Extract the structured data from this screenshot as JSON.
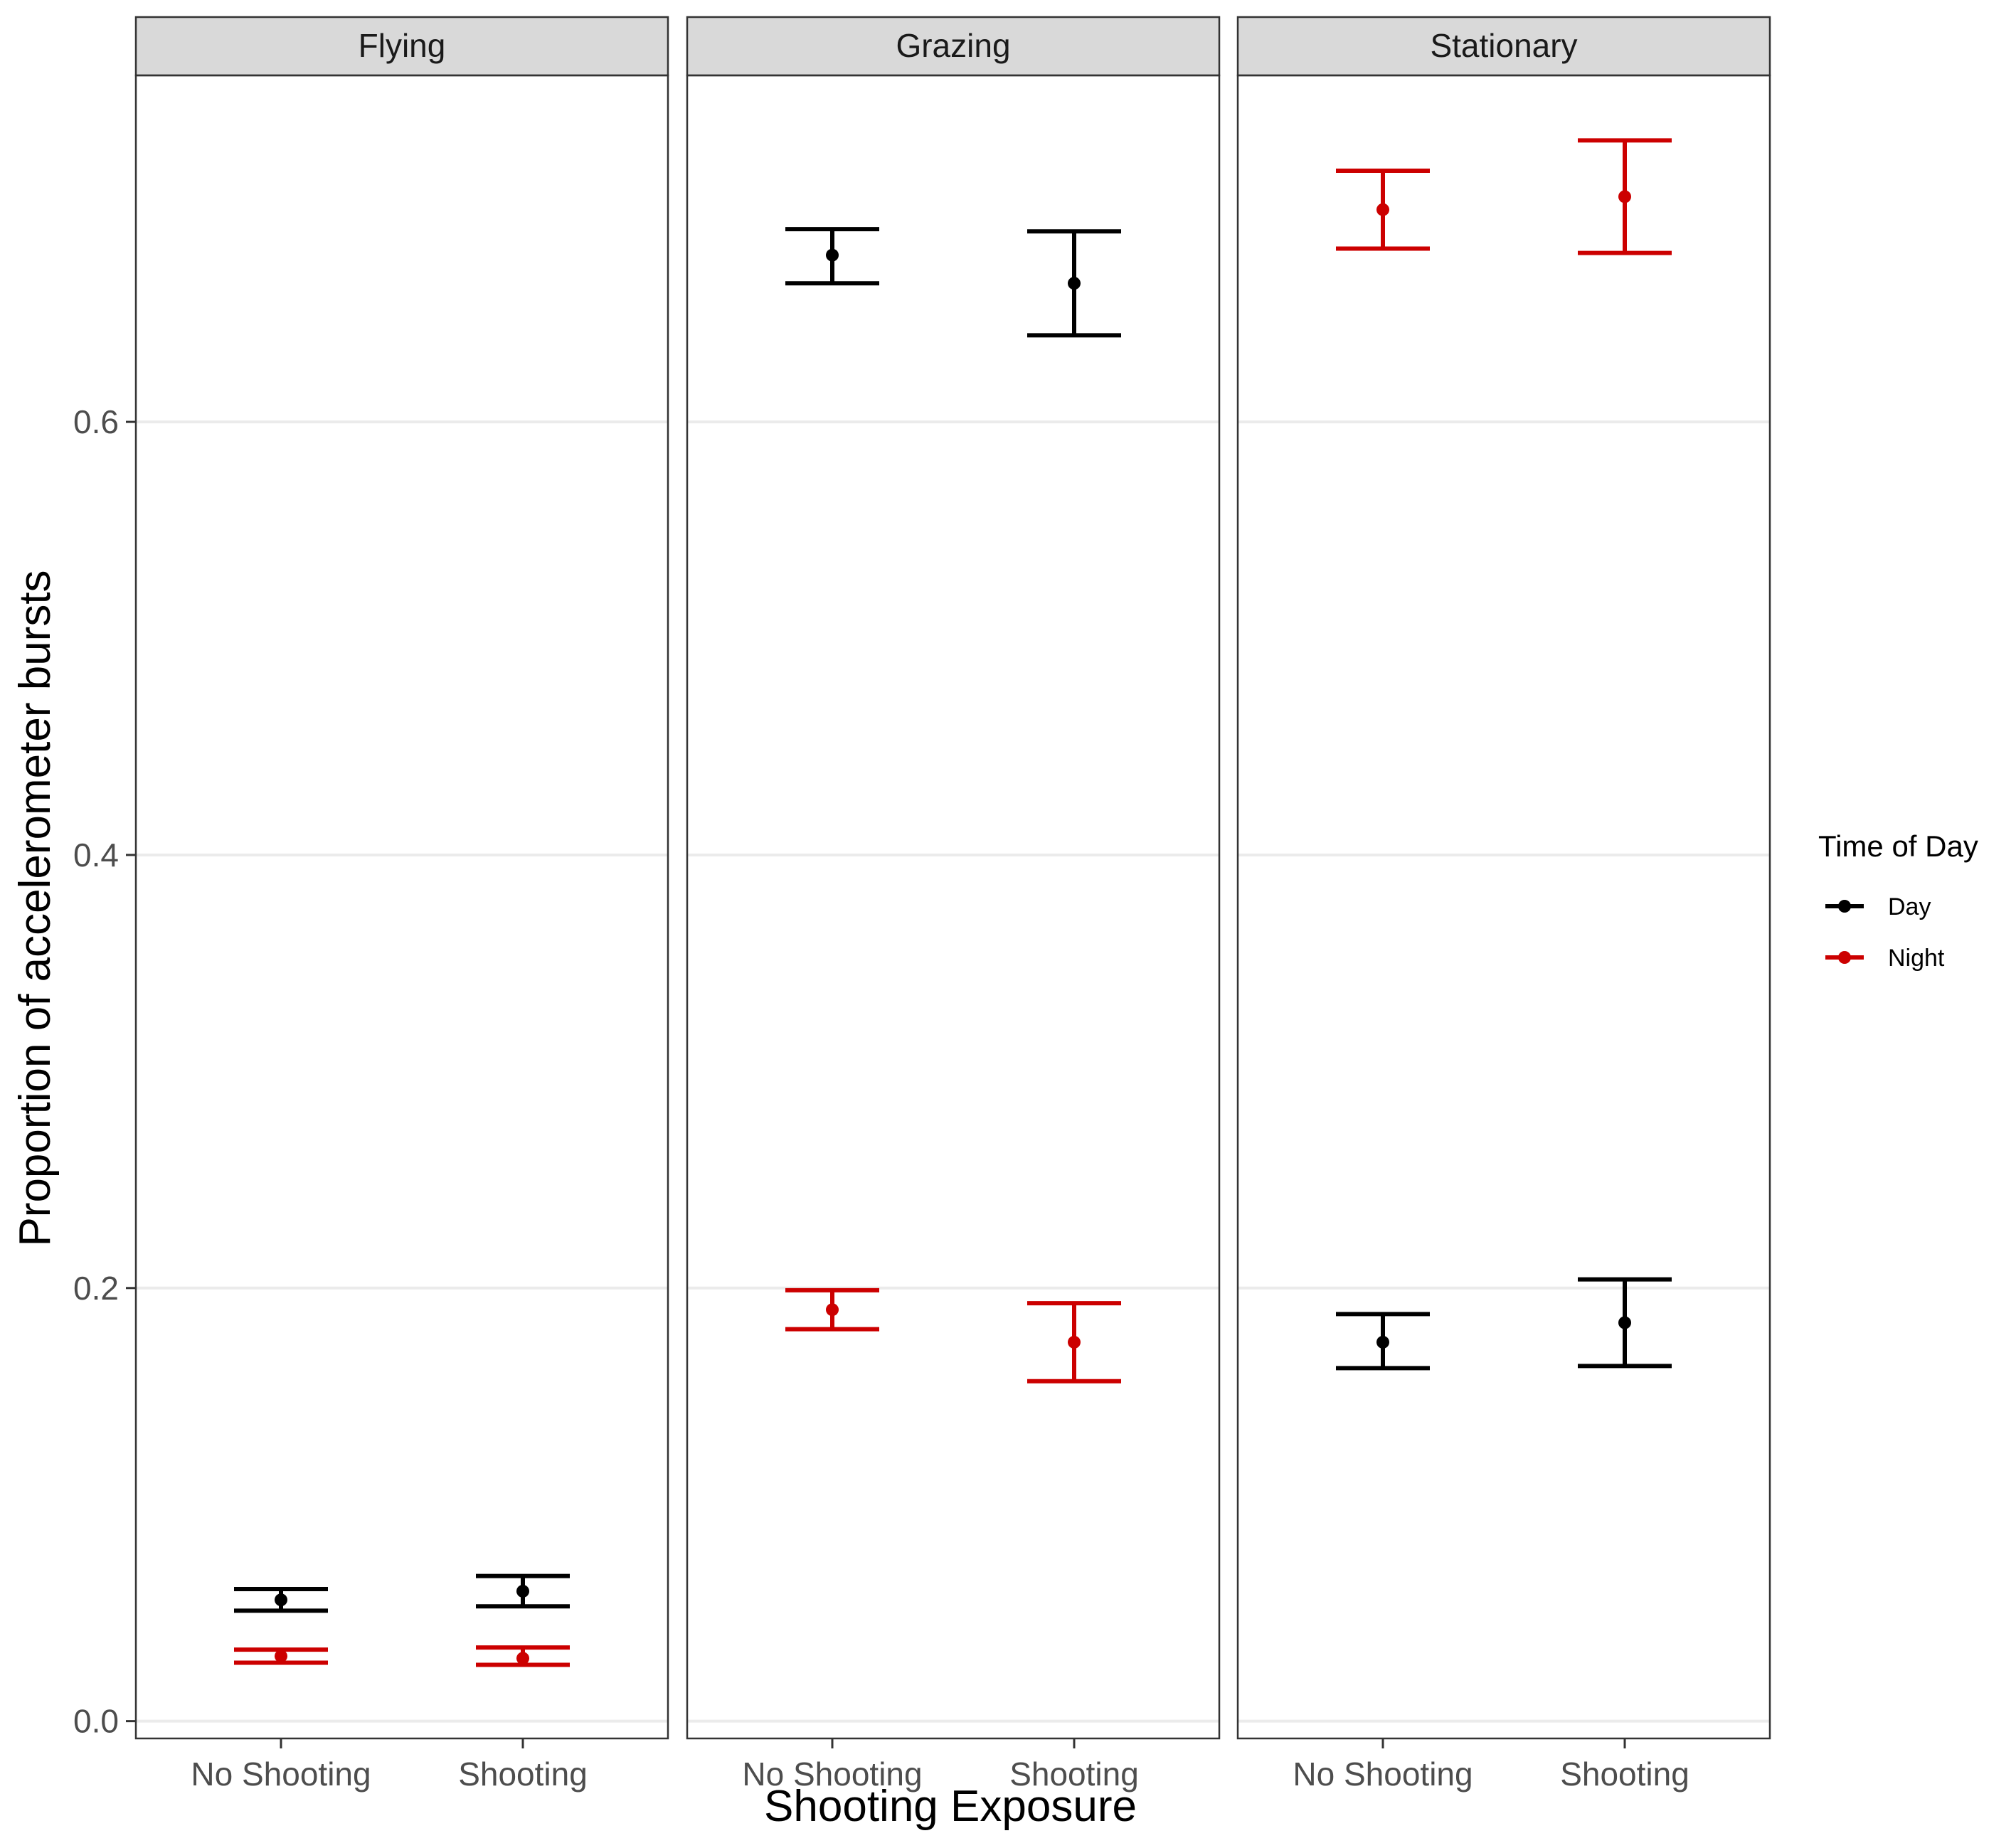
{
  "chart_data": {
    "type": "errorbar",
    "xlabel": "Shooting Exposure",
    "ylabel": "Proportion of accelerometer bursts",
    "categories": [
      "No Shooting",
      "Shooting"
    ],
    "ylim": [
      -0.008,
      0.76
    ],
    "yticks": [
      0.0,
      0.2,
      0.4,
      0.6
    ],
    "ytick_labels": [
      "0.0",
      "0.2",
      "0.4",
      "0.6"
    ],
    "grid": "horizontal major",
    "legend": {
      "title": "Time of Day",
      "position": "right",
      "entries": [
        {
          "label": "Day",
          "color": "#000000"
        },
        {
          "label": "Night",
          "color": "#cc0000"
        }
      ]
    },
    "panels": [
      {
        "name": "Flying",
        "series": [
          {
            "name": "Day",
            "color": "#000000",
            "points": [
              {
                "x": "No Shooting",
                "y": 0.056,
                "lo": 0.051,
                "hi": 0.061
              },
              {
                "x": "Shooting",
                "y": 0.06,
                "lo": 0.053,
                "hi": 0.067
              }
            ]
          },
          {
            "name": "Night",
            "color": "#cc0000",
            "points": [
              {
                "x": "No Shooting",
                "y": 0.03,
                "lo": 0.027,
                "hi": 0.033
              },
              {
                "x": "Shooting",
                "y": 0.029,
                "lo": 0.026,
                "hi": 0.034
              }
            ]
          }
        ]
      },
      {
        "name": "Grazing",
        "series": [
          {
            "name": "Day",
            "color": "#000000",
            "points": [
              {
                "x": "No Shooting",
                "y": 0.677,
                "lo": 0.664,
                "hi": 0.689
              },
              {
                "x": "Shooting",
                "y": 0.664,
                "lo": 0.64,
                "hi": 0.688
              }
            ]
          },
          {
            "name": "Night",
            "color": "#cc0000",
            "points": [
              {
                "x": "No Shooting",
                "y": 0.19,
                "lo": 0.181,
                "hi": 0.199
              },
              {
                "x": "Shooting",
                "y": 0.175,
                "lo": 0.157,
                "hi": 0.193
              }
            ]
          }
        ]
      },
      {
        "name": "Stationary",
        "series": [
          {
            "name": "Day",
            "color": "#000000",
            "points": [
              {
                "x": "No Shooting",
                "y": 0.175,
                "lo": 0.163,
                "hi": 0.188
              },
              {
                "x": "Shooting",
                "y": 0.184,
                "lo": 0.164,
                "hi": 0.204
              }
            ]
          },
          {
            "name": "Night",
            "color": "#cc0000",
            "points": [
              {
                "x": "No Shooting",
                "y": 0.698,
                "lo": 0.68,
                "hi": 0.716
              },
              {
                "x": "Shooting",
                "y": 0.704,
                "lo": 0.678,
                "hi": 0.73
              }
            ]
          }
        ]
      }
    ]
  }
}
